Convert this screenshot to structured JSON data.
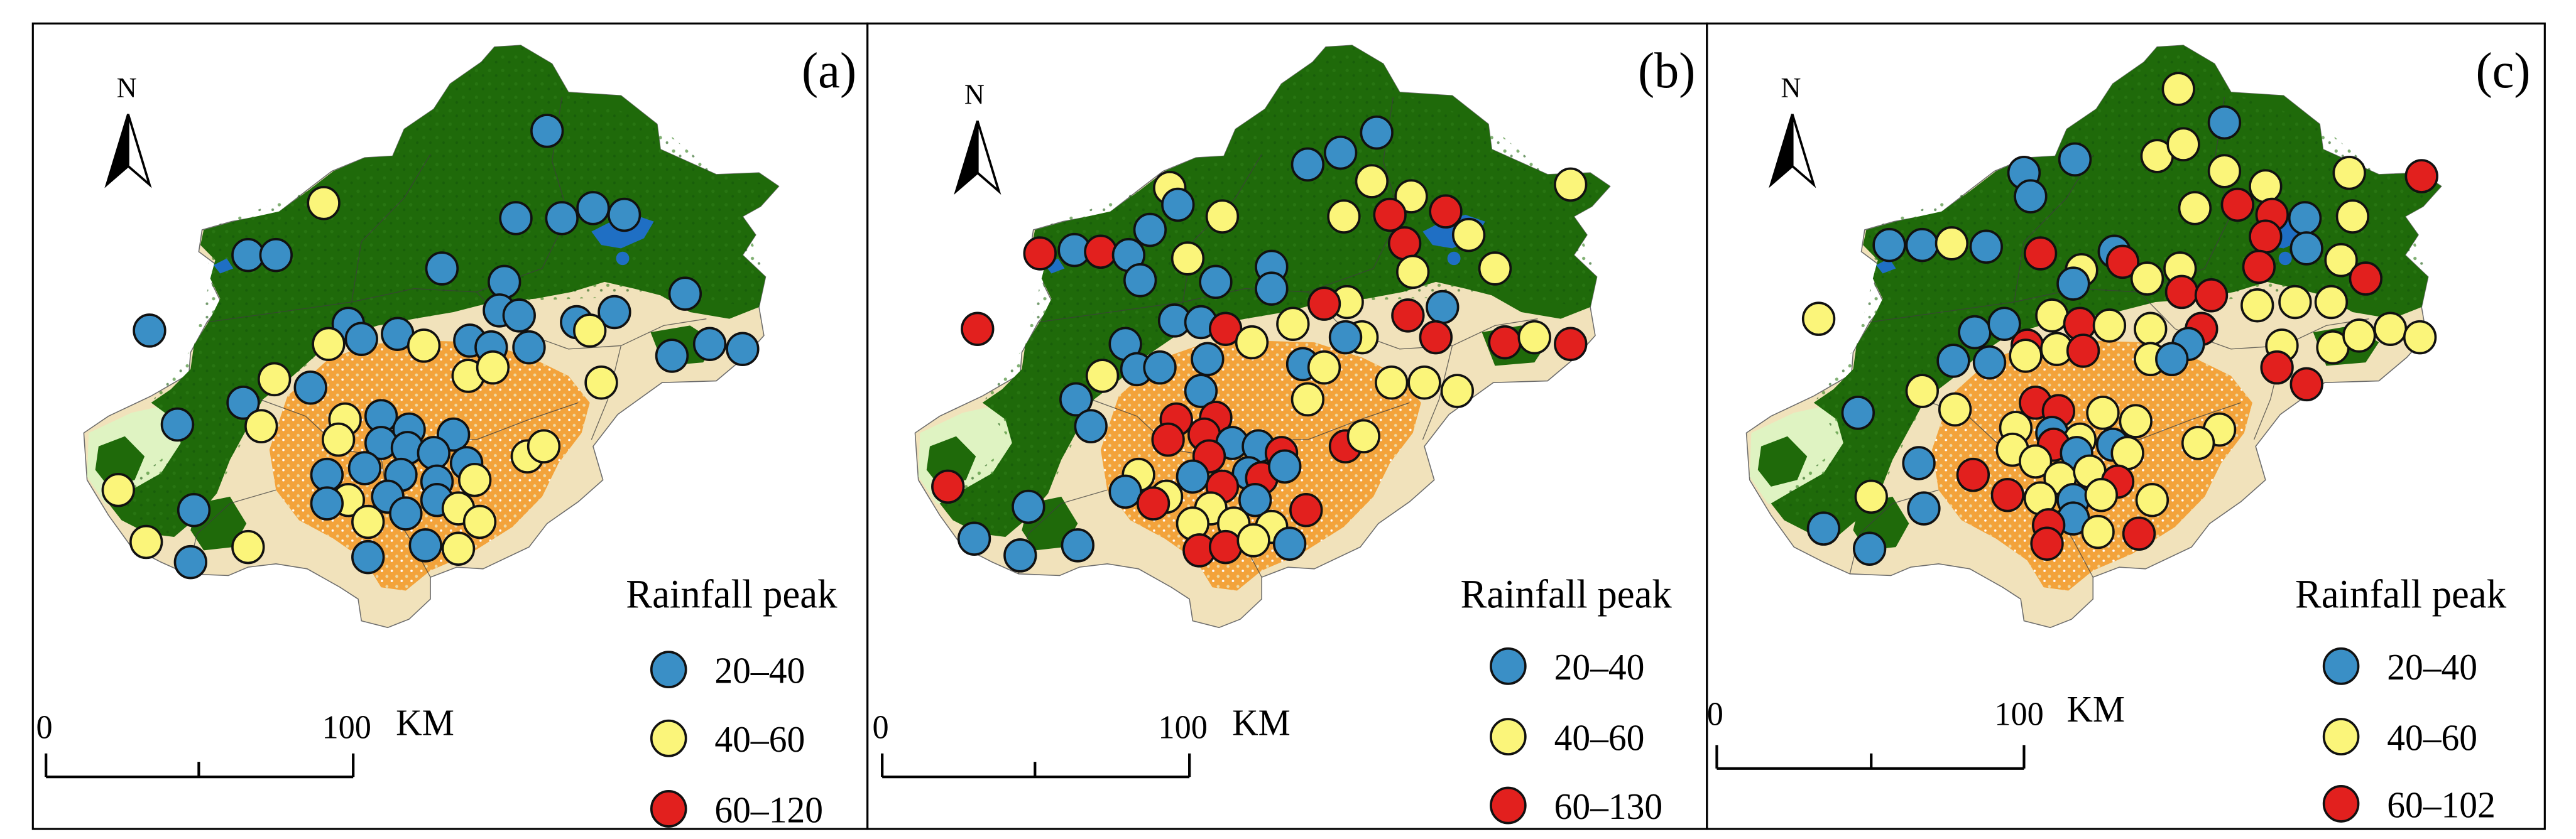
{
  "north_label": "N",
  "scale_bar": {
    "start": "0",
    "end": "100",
    "unit": "KM"
  },
  "legend_title": "Rainfall peak",
  "colors": {
    "low": "#3a8fc6",
    "mid": "#fbf57a",
    "high": "#e2201e",
    "forest": "#1f6a0a",
    "urban": "#f3a33b",
    "cropland": "#eed9a4",
    "grass": "#dff3c2",
    "water": "#1f6fc4"
  },
  "panels": [
    {
      "label": "(a)",
      "legend": [
        {
          "range": "20–40",
          "class": "low"
        },
        {
          "range": "40–60",
          "class": "mid"
        },
        {
          "range": "60–120",
          "class": "high"
        }
      ],
      "stations": [
        [
          333,
          78,
          "low"
        ],
        [
          197,
          121,
          "mid"
        ],
        [
          314,
          130,
          "low"
        ],
        [
          342,
          130,
          "low"
        ],
        [
          361,
          124,
          "low"
        ],
        [
          380,
          128,
          "low"
        ],
        [
          151,
          152,
          "low"
        ],
        [
          168,
          152,
          "low"
        ],
        [
          269,
          160,
          "low"
        ],
        [
          417,
          175,
          "low"
        ],
        [
          307,
          168,
          "low"
        ],
        [
          91,
          197,
          "low"
        ],
        [
          212,
          193,
          "low"
        ],
        [
          304,
          185,
          "low"
        ],
        [
          316,
          188,
          "low"
        ],
        [
          351,
          192,
          "low"
        ],
        [
          374,
          186,
          "low"
        ],
        [
          242,
          199,
          "low"
        ],
        [
          258,
          206,
          "mid"
        ],
        [
          286,
          203,
          "low"
        ],
        [
          299,
          207,
          "low"
        ],
        [
          322,
          207,
          "low"
        ],
        [
          200,
          205,
          "mid"
        ],
        [
          220,
          202,
          "low"
        ],
        [
          359,
          197,
          "mid"
        ],
        [
          409,
          212,
          "low"
        ],
        [
          432,
          205,
          "low"
        ],
        [
          452,
          208,
          "low"
        ],
        [
          167,
          226,
          "mid"
        ],
        [
          189,
          231,
          "low"
        ],
        [
          148,
          240,
          "low"
        ],
        [
          285,
          224,
          "mid"
        ],
        [
          300,
          219,
          "mid"
        ],
        [
          366,
          228,
          "mid"
        ],
        [
          159,
          254,
          "mid"
        ],
        [
          210,
          250,
          "mid"
        ],
        [
          232,
          248,
          "low"
        ],
        [
          249,
          256,
          "low"
        ],
        [
          276,
          259,
          "low"
        ],
        [
          108,
          253,
          "low"
        ],
        [
          206,
          262,
          "mid"
        ],
        [
          232,
          264,
          "low"
        ],
        [
          248,
          267,
          "low"
        ],
        [
          264,
          270,
          "low"
        ],
        [
          284,
          276,
          "low"
        ],
        [
          321,
          272,
          "mid"
        ],
        [
          331,
          266,
          "mid"
        ],
        [
          222,
          279,
          "low"
        ],
        [
          244,
          283,
          "low"
        ],
        [
          266,
          287,
          "low"
        ],
        [
          199,
          283,
          "low"
        ],
        [
          289,
          286,
          "mid"
        ],
        [
          72,
          292,
          "mid"
        ],
        [
          212,
          298,
          "mid"
        ],
        [
          236,
          296,
          "low"
        ],
        [
          266,
          298,
          "low"
        ],
        [
          199,
          300,
          "low"
        ],
        [
          247,
          306,
          "low"
        ],
        [
          118,
          304,
          "low"
        ],
        [
          279,
          303,
          "mid"
        ],
        [
          292,
          311,
          "mid"
        ],
        [
          224,
          311,
          "mid"
        ],
        [
          89,
          323,
          "mid"
        ],
        [
          151,
          326,
          "mid"
        ],
        [
          259,
          325,
          "low"
        ],
        [
          279,
          327,
          "mid"
        ],
        [
          116,
          335,
          "low"
        ],
        [
          224,
          332,
          "low"
        ]
      ]
    },
    {
      "label": "(b)",
      "legend": [
        {
          "range": "20–40",
          "class": "low"
        },
        {
          "range": "40–60",
          "class": "mid"
        },
        {
          "range": "60–130",
          "class": "high"
        }
      ],
      "stations": [
        [
          838,
          79,
          "low"
        ],
        [
          796,
          98,
          "low"
        ],
        [
          816,
          91,
          "low"
        ],
        [
          835,
          108,
          "mid"
        ],
        [
          859,
          117,
          "mid"
        ],
        [
          880,
          126,
          "high"
        ],
        [
          956,
          110,
          "mid"
        ],
        [
          846,
          128,
          "high"
        ],
        [
          712,
          112,
          "mid"
        ],
        [
          818,
          129,
          "mid"
        ],
        [
          717,
          122,
          "low"
        ],
        [
          700,
          137,
          "low"
        ],
        [
          744,
          129,
          "mid"
        ],
        [
          633,
          151,
          "high"
        ],
        [
          654,
          149,
          "low"
        ],
        [
          670,
          150,
          "high"
        ],
        [
          687,
          152,
          "low"
        ],
        [
          723,
          154,
          "mid"
        ],
        [
          774,
          159,
          "low"
        ],
        [
          855,
          145,
          "high"
        ],
        [
          894,
          140,
          "mid"
        ],
        [
          910,
          160,
          "mid"
        ],
        [
          860,
          162,
          "mid"
        ],
        [
          595,
          196,
          "high"
        ],
        [
          694,
          167,
          "low"
        ],
        [
          740,
          168,
          "low"
        ],
        [
          774,
          172,
          "low"
        ],
        [
          820,
          180,
          "mid"
        ],
        [
          878,
          183,
          "low"
        ],
        [
          806,
          181,
          "high"
        ],
        [
          857,
          188,
          "high"
        ],
        [
          715,
          191,
          "low"
        ],
        [
          731,
          192,
          "low"
        ],
        [
          746,
          196,
          "high"
        ],
        [
          787,
          193,
          "mid"
        ],
        [
          829,
          201,
          "mid"
        ],
        [
          874,
          201,
          "high"
        ],
        [
          916,
          204,
          "high"
        ],
        [
          934,
          201,
          "mid"
        ],
        [
          956,
          205,
          "high"
        ],
        [
          685,
          205,
          "low"
        ],
        [
          762,
          204,
          "mid"
        ],
        [
          819,
          201,
          "low"
        ],
        [
          735,
          214,
          "low"
        ],
        [
          793,
          217,
          "low"
        ],
        [
          806,
          219,
          "mid"
        ],
        [
          671,
          224,
          "mid"
        ],
        [
          692,
          220,
          "low"
        ],
        [
          706,
          219,
          "low"
        ],
        [
          847,
          228,
          "mid"
        ],
        [
          867,
          228,
          "mid"
        ],
        [
          887,
          233,
          "mid"
        ],
        [
          655,
          238,
          "low"
        ],
        [
          731,
          233,
          "low"
        ],
        [
          796,
          238,
          "mid"
        ],
        [
          664,
          254,
          "low"
        ],
        [
          716,
          250,
          "high"
        ],
        [
          740,
          249,
          "high"
        ],
        [
          711,
          262,
          "high"
        ],
        [
          733,
          259,
          "high"
        ],
        [
          750,
          264,
          "low"
        ],
        [
          766,
          266,
          "low"
        ],
        [
          780,
          270,
          "high"
        ],
        [
          736,
          272,
          "high"
        ],
        [
          760,
          282,
          "low"
        ],
        [
          819,
          266,
          "high"
        ],
        [
          830,
          260,
          "mid"
        ],
        [
          693,
          283,
          "mid"
        ],
        [
          726,
          284,
          "low"
        ],
        [
          744,
          290,
          "high"
        ],
        [
          768,
          285,
          "high"
        ],
        [
          782,
          278,
          "low"
        ],
        [
          577,
          290,
          "high"
        ],
        [
          710,
          296,
          "mid"
        ],
        [
          685,
          293,
          "low"
        ],
        [
          702,
          300,
          "high"
        ],
        [
          737,
          303,
          "mid"
        ],
        [
          764,
          298,
          "low"
        ],
        [
          795,
          304,
          "high"
        ],
        [
          626,
          302,
          "low"
        ],
        [
          726,
          312,
          "mid"
        ],
        [
          751,
          312,
          "mid"
        ],
        [
          774,
          314,
          "mid"
        ],
        [
          593,
          321,
          "low"
        ],
        [
          656,
          325,
          "low"
        ],
        [
          730,
          328,
          "high"
        ],
        [
          746,
          326,
          "high"
        ],
        [
          763,
          322,
          "mid"
        ],
        [
          785,
          324,
          "low"
        ],
        [
          621,
          331,
          "low"
        ]
      ]
    },
    {
      "label": "(c)",
      "legend": [
        {
          "range": "20–40",
          "class": "low"
        },
        {
          "range": "40–60",
          "class": "mid"
        },
        {
          "range": "60–102",
          "class": "high"
        }
      ],
      "stations": [
        [
          1326,
          53,
          "mid"
        ],
        [
          1354,
          73,
          "low"
        ],
        [
          1313,
          93,
          "mid"
        ],
        [
          1329,
          86,
          "mid"
        ],
        [
          1263,
          95,
          "low"
        ],
        [
          1354,
          102,
          "mid"
        ],
        [
          1379,
          111,
          "mid"
        ],
        [
          1430,
          103,
          "mid"
        ],
        [
          1474,
          105,
          "high"
        ],
        [
          1232,
          103,
          "low"
        ],
        [
          1236,
          117,
          "low"
        ],
        [
          1336,
          124,
          "mid"
        ],
        [
          1362,
          122,
          "high"
        ],
        [
          1383,
          128,
          "high"
        ],
        [
          1403,
          130,
          "low"
        ],
        [
          1432,
          129,
          "mid"
        ],
        [
          1150,
          146,
          "low"
        ],
        [
          1170,
          146,
          "low"
        ],
        [
          1188,
          145,
          "mid"
        ],
        [
          1209,
          147,
          "low"
        ],
        [
          1242,
          151,
          "high"
        ],
        [
          1287,
          150,
          "low"
        ],
        [
          1292,
          156,
          "high"
        ],
        [
          1379,
          141,
          "high"
        ],
        [
          1404,
          148,
          "low"
        ],
        [
          1425,
          155,
          "mid"
        ],
        [
          1267,
          161,
          "mid"
        ],
        [
          1327,
          160,
          "mid"
        ],
        [
          1375,
          159,
          "high"
        ],
        [
          1440,
          166,
          "high"
        ],
        [
          1262,
          169,
          "low"
        ],
        [
          1307,
          166,
          "mid"
        ],
        [
          1328,
          174,
          "high"
        ],
        [
          1346,
          176,
          "high"
        ],
        [
          1374,
          182,
          "mid"
        ],
        [
          1397,
          180,
          "mid"
        ],
        [
          1419,
          180,
          "mid"
        ],
        [
          1107,
          190,
          "mid"
        ],
        [
          1202,
          198,
          "low"
        ],
        [
          1220,
          193,
          "low"
        ],
        [
          1249,
          188,
          "mid"
        ],
        [
          1266,
          193,
          "high"
        ],
        [
          1284,
          194,
          "mid"
        ],
        [
          1340,
          196,
          "high"
        ],
        [
          1309,
          196,
          "mid"
        ],
        [
          1234,
          206,
          "high"
        ],
        [
          1252,
          208,
          "mid"
        ],
        [
          1233,
          212,
          "mid"
        ],
        [
          1268,
          209,
          "high"
        ],
        [
          1332,
          205,
          "low"
        ],
        [
          1389,
          206,
          "mid"
        ],
        [
          1420,
          207,
          "mid"
        ],
        [
          1436,
          200,
          "mid"
        ],
        [
          1455,
          196,
          "mid"
        ],
        [
          1473,
          201,
          "mid"
        ],
        [
          1189,
          215,
          "low"
        ],
        [
          1211,
          216,
          "low"
        ],
        [
          1309,
          214,
          "mid"
        ],
        [
          1322,
          214,
          "low"
        ],
        [
          1386,
          219,
          "high"
        ],
        [
          1404,
          229,
          "high"
        ],
        [
          1170,
          233,
          "mid"
        ],
        [
          1190,
          244,
          "mid"
        ],
        [
          1131,
          246,
          "low"
        ],
        [
          1239,
          240,
          "high"
        ],
        [
          1253,
          245,
          "high"
        ],
        [
          1280,
          246,
          "mid"
        ],
        [
          1300,
          251,
          "mid"
        ],
        [
          1227,
          255,
          "mid"
        ],
        [
          1249,
          258,
          "low"
        ],
        [
          1266,
          262,
          "mid"
        ],
        [
          1351,
          256,
          "mid"
        ],
        [
          1225,
          268,
          "mid"
        ],
        [
          1250,
          265,
          "high"
        ],
        [
          1264,
          270,
          "low"
        ],
        [
          1286,
          265,
          "low"
        ],
        [
          1295,
          270,
          "mid"
        ],
        [
          1338,
          264,
          "mid"
        ],
        [
          1168,
          276,
          "low"
        ],
        [
          1201,
          283,
          "high"
        ],
        [
          1239,
          275,
          "mid"
        ],
        [
          1254,
          285,
          "mid"
        ],
        [
          1272,
          281,
          "mid"
        ],
        [
          1289,
          287,
          "high"
        ],
        [
          1310,
          298,
          "mid"
        ],
        [
          1222,
          295,
          "high"
        ],
        [
          1242,
          297,
          "mid"
        ],
        [
          1262,
          298,
          "low"
        ],
        [
          1279,
          295,
          "mid"
        ],
        [
          1139,
          296,
          "mid"
        ],
        [
          1171,
          303,
          "low"
        ],
        [
          1262,
          309,
          "low"
        ],
        [
          1247,
          313,
          "high"
        ],
        [
          1277,
          317,
          "mid"
        ],
        [
          1246,
          324,
          "high"
        ],
        [
          1302,
          318,
          "high"
        ],
        [
          1110,
          315,
          "low"
        ],
        [
          1138,
          327,
          "low"
        ]
      ]
    }
  ]
}
